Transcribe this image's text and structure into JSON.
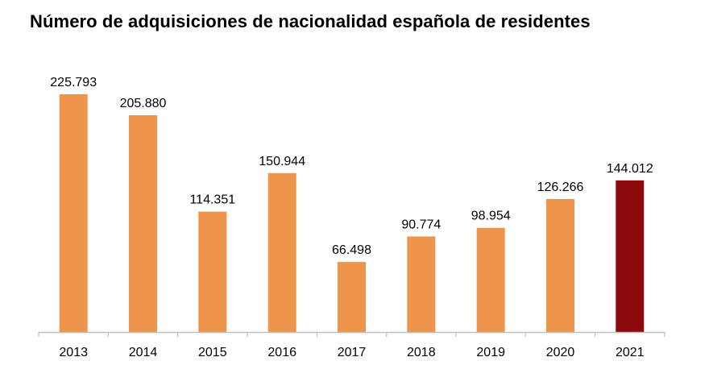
{
  "chart_data": {
    "type": "bar",
    "title": "Número de adquisiciones de nacionalidad española de residentes",
    "xlabel": "",
    "ylabel": "",
    "categories": [
      "2013",
      "2014",
      "2015",
      "2016",
      "2017",
      "2018",
      "2019",
      "2020",
      "2021"
    ],
    "values": [
      225793,
      205880,
      114351,
      150944,
      66498,
      90774,
      98954,
      126266,
      144012
    ],
    "value_labels": [
      "225.793",
      "205.880",
      "114.351",
      "150.944",
      "66.498",
      "90.774",
      "98.954",
      "126.266",
      "144.012"
    ],
    "ylim": [
      0,
      225793
    ],
    "grid": false,
    "colors": {
      "default": "#EE944B",
      "highlight": "#8B0A0E",
      "axis": "#BFBFBF"
    },
    "highlight_index": 8
  }
}
